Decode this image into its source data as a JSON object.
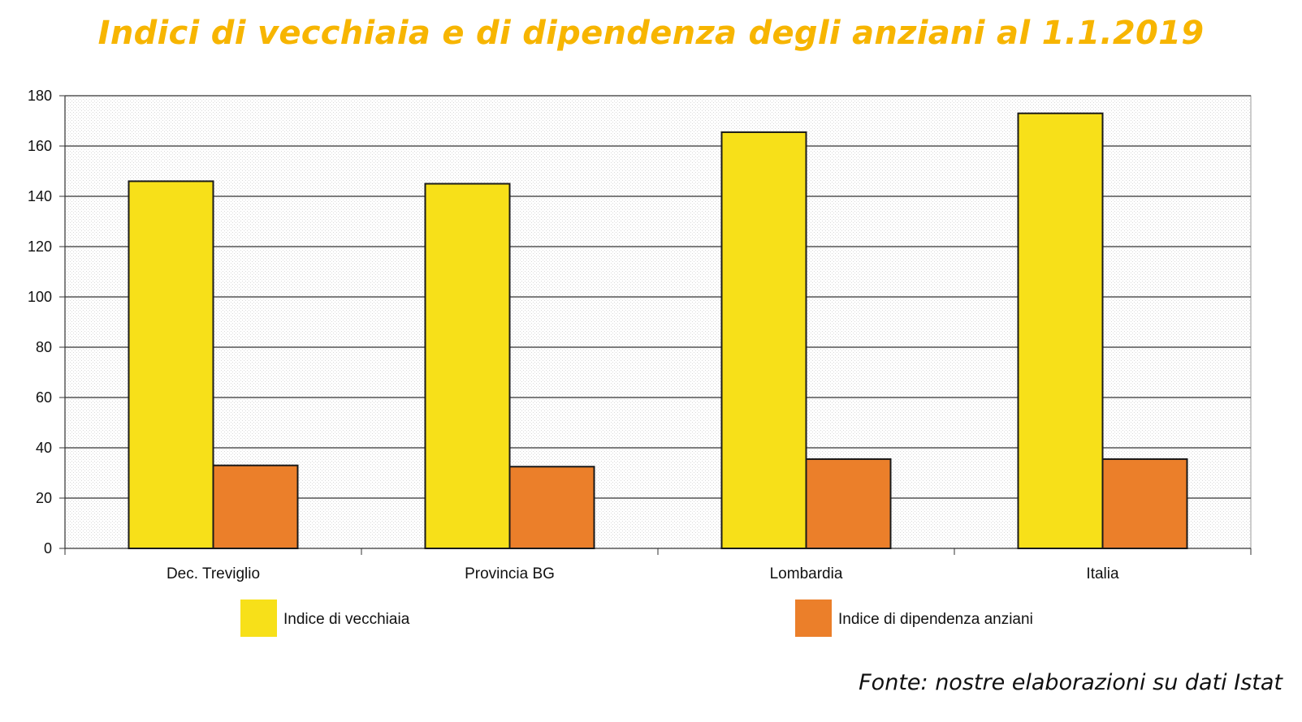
{
  "title": "Indici di vecchiaia e di dipendenza degli anziani al 1.1.2019",
  "source": "Fonte: nostre elaborazioni su dati Istat",
  "chart_data": {
    "type": "bar",
    "categories": [
      "Dec. Treviglio",
      "Provincia BG",
      "Lombardia",
      "Italia"
    ],
    "series": [
      {
        "name": "Indice di vecchiaia",
        "color": "#f7e019",
        "values": [
          146,
          145,
          165.5,
          173
        ]
      },
      {
        "name": "Indice di dipendenza anziani",
        "color": "#eb7f2a",
        "values": [
          33,
          32.5,
          35.5,
          35.5
        ]
      }
    ],
    "ylim": [
      0,
      180
    ],
    "yticks": [
      0,
      20,
      40,
      60,
      80,
      100,
      120,
      140,
      160,
      180
    ],
    "xlabel": "",
    "ylabel": "",
    "grid": true,
    "legend": "bottom"
  }
}
